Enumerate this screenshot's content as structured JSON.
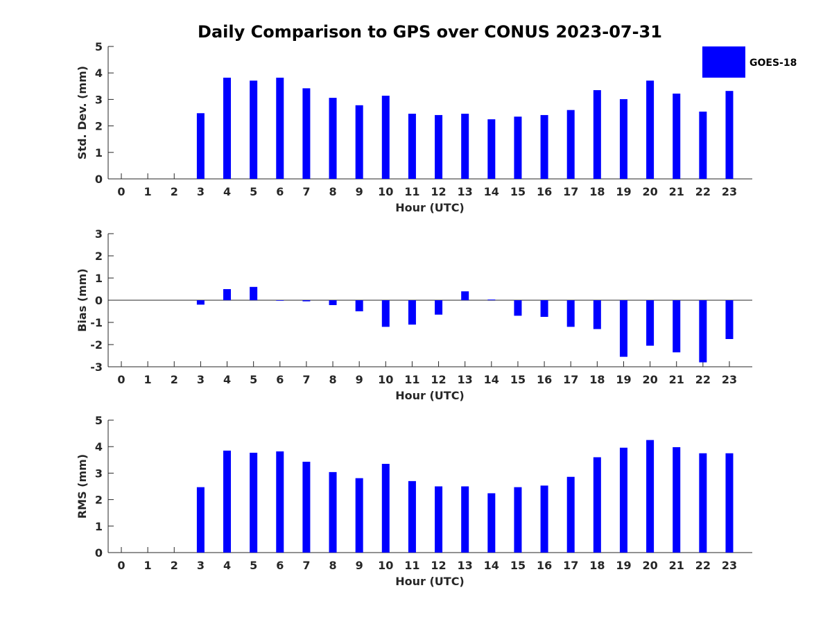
{
  "title": "Daily Comparison to GPS over CONUS 2023-07-31",
  "legend": {
    "label": "GOES-18",
    "color": "#0000ff"
  },
  "chart_data": [
    {
      "type": "bar",
      "ylabel": "Std. Dev. (mm)",
      "xlabel": "Hour (UTC)",
      "ylim": [
        0,
        5
      ],
      "yticks": [
        0,
        1,
        2,
        3,
        4,
        5
      ],
      "categories": [
        "0",
        "1",
        "2",
        "3",
        "4",
        "5",
        "6",
        "7",
        "8",
        "9",
        "10",
        "11",
        "12",
        "13",
        "14",
        "15",
        "16",
        "17",
        "18",
        "19",
        "20",
        "21",
        "22",
        "23"
      ],
      "series": [
        {
          "name": "GOES-18",
          "values": [
            null,
            null,
            null,
            2.48,
            3.82,
            3.71,
            3.82,
            3.42,
            3.06,
            2.78,
            3.14,
            2.46,
            2.41,
            2.46,
            2.25,
            2.35,
            2.41,
            2.6,
            3.35,
            3.01,
            3.71,
            3.22,
            2.54,
            3.32
          ]
        }
      ]
    },
    {
      "type": "bar",
      "ylabel": "Bias (mm)",
      "xlabel": "Hour (UTC)",
      "ylim": [
        -3,
        3
      ],
      "yticks": [
        -3,
        -2,
        -1,
        0,
        1,
        2,
        3
      ],
      "categories": [
        "0",
        "1",
        "2",
        "3",
        "4",
        "5",
        "6",
        "7",
        "8",
        "9",
        "10",
        "11",
        "12",
        "13",
        "14",
        "15",
        "16",
        "17",
        "18",
        "19",
        "20",
        "21",
        "22",
        "23"
      ],
      "series": [
        {
          "name": "GOES-18",
          "values": [
            null,
            null,
            null,
            -0.2,
            0.5,
            0.6,
            0.0,
            -0.05,
            -0.22,
            -0.5,
            -1.2,
            -1.1,
            -0.65,
            0.4,
            0.03,
            -0.7,
            -0.75,
            -1.2,
            -1.3,
            -2.55,
            -2.05,
            -2.35,
            -2.8,
            -1.75
          ]
        }
      ]
    },
    {
      "type": "bar",
      "ylabel": "RMS (mm)",
      "xlabel": "Hour (UTC)",
      "ylim": [
        0,
        5
      ],
      "yticks": [
        0,
        1,
        2,
        3,
        4,
        5
      ],
      "categories": [
        "0",
        "1",
        "2",
        "3",
        "4",
        "5",
        "6",
        "7",
        "8",
        "9",
        "10",
        "11",
        "12",
        "13",
        "14",
        "15",
        "16",
        "17",
        "18",
        "19",
        "20",
        "21",
        "22",
        "23"
      ],
      "series": [
        {
          "name": "GOES-18",
          "values": [
            null,
            null,
            null,
            2.47,
            3.85,
            3.77,
            3.82,
            3.43,
            3.04,
            2.81,
            3.35,
            2.7,
            2.5,
            2.5,
            2.24,
            2.47,
            2.53,
            2.86,
            3.6,
            3.96,
            4.25,
            3.98,
            3.75,
            3.75
          ]
        }
      ]
    }
  ]
}
